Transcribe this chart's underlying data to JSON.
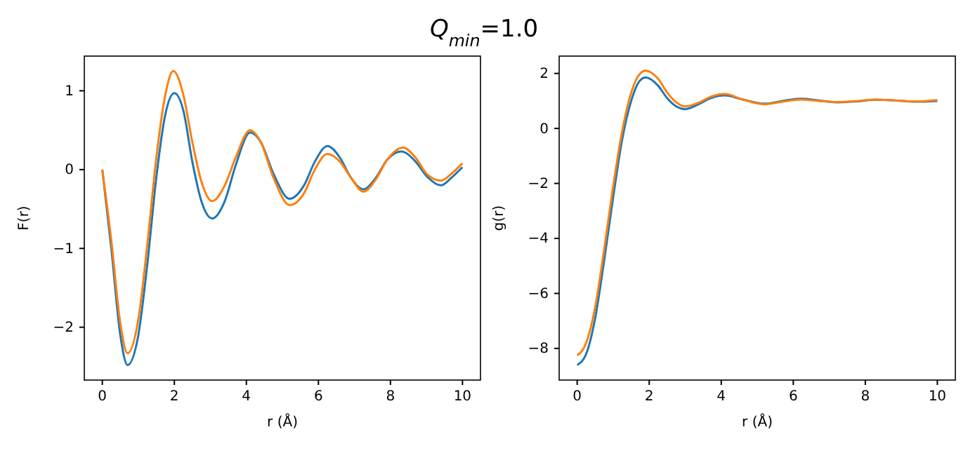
{
  "chart_data": [
    {
      "type": "line",
      "title": "Q$_{min}$=1.0",
      "xlabel": "r (Å)",
      "ylabel": "F(r)",
      "xlim": [
        -0.5,
        10.5
      ],
      "xticks": [
        0,
        2,
        4,
        6,
        8,
        10
      ],
      "ylim": [
        -2.67,
        1.44
      ],
      "yticks": [
        -2,
        -1,
        0,
        1
      ],
      "grid": false,
      "series": [
        {
          "color": "#1f77b4",
          "x": [
            0,
            0.25,
            0.5,
            0.7,
            1.0,
            1.25,
            1.5,
            1.75,
            2.0,
            2.25,
            2.5,
            2.75,
            3.05,
            3.4,
            3.7,
            4.1,
            4.4,
            4.75,
            5.2,
            5.6,
            5.9,
            6.25,
            6.6,
            6.9,
            7.25,
            7.6,
            7.9,
            8.3,
            8.7,
            9.0,
            9.4,
            9.7,
            10
          ],
          "values": [
            0,
            -1.0,
            -2.1,
            -2.48,
            -2.1,
            -1.2,
            -0.1,
            0.7,
            0.97,
            0.75,
            0.1,
            -0.4,
            -0.62,
            -0.4,
            0.05,
            0.47,
            0.35,
            -0.05,
            -0.37,
            -0.2,
            0.1,
            0.3,
            0.15,
            -0.1,
            -0.25,
            -0.1,
            0.12,
            0.23,
            0.1,
            -0.08,
            -0.2,
            -0.1,
            0.03
          ]
        },
        {
          "color": "#ff7f0e",
          "x": [
            0,
            0.25,
            0.5,
            0.7,
            1.0,
            1.25,
            1.5,
            1.75,
            1.97,
            2.25,
            2.5,
            2.75,
            3.05,
            3.4,
            3.7,
            4.1,
            4.4,
            4.75,
            5.2,
            5.6,
            5.9,
            6.25,
            6.6,
            6.9,
            7.25,
            7.6,
            7.9,
            8.35,
            8.7,
            9.0,
            9.4,
            9.7,
            10
          ],
          "values": [
            0,
            -0.9,
            -1.95,
            -2.33,
            -1.9,
            -0.95,
            0.15,
            0.95,
            1.25,
            0.95,
            0.35,
            -0.15,
            -0.4,
            -0.2,
            0.15,
            0.5,
            0.35,
            -0.1,
            -0.45,
            -0.3,
            0.0,
            0.2,
            0.1,
            -0.1,
            -0.28,
            -0.12,
            0.12,
            0.28,
            0.15,
            -0.05,
            -0.14,
            -0.05,
            0.08
          ]
        }
      ]
    },
    {
      "type": "line",
      "xlabel": "r (Å)",
      "ylabel": "g(r)",
      "xlim": [
        -0.5,
        10.5
      ],
      "xticks": [
        0,
        2,
        4,
        6,
        8,
        10
      ],
      "ylim": [
        -9.15,
        2.63
      ],
      "yticks": [
        -8,
        -6,
        -4,
        -2,
        0,
        2
      ],
      "grid": false,
      "series": [
        {
          "color": "#1f77b4",
          "x": [
            0,
            0.25,
            0.5,
            0.75,
            1.0,
            1.25,
            1.5,
            1.75,
            1.9,
            2.25,
            2.5,
            2.75,
            3.0,
            3.4,
            3.7,
            4.1,
            4.6,
            5.2,
            5.7,
            6.2,
            6.7,
            7.2,
            7.7,
            8.3,
            8.8,
            9.4,
            10
          ],
          "values": [
            -8.6,
            -8.2,
            -6.9,
            -4.8,
            -2.5,
            -0.4,
            1.0,
            1.75,
            1.85,
            1.55,
            1.1,
            0.8,
            0.7,
            0.9,
            1.1,
            1.2,
            1.05,
            0.9,
            1.0,
            1.08,
            1.02,
            0.95,
            0.98,
            1.04,
            1.02,
            0.97,
            1.0
          ]
        },
        {
          "color": "#ff7f0e",
          "x": [
            0,
            0.25,
            0.5,
            0.75,
            1.0,
            1.25,
            1.5,
            1.75,
            1.9,
            2.25,
            2.5,
            2.75,
            3.0,
            3.4,
            3.7,
            4.1,
            4.6,
            5.2,
            5.7,
            6.2,
            6.7,
            7.2,
            7.7,
            8.3,
            8.8,
            9.4,
            10
          ],
          "values": [
            -8.25,
            -7.8,
            -6.5,
            -4.4,
            -2.1,
            -0.1,
            1.3,
            2.0,
            2.1,
            1.8,
            1.3,
            0.95,
            0.8,
            0.95,
            1.15,
            1.25,
            1.05,
            0.88,
            0.97,
            1.05,
            1.0,
            0.96,
            0.99,
            1.05,
            1.02,
            0.98,
            1.03
          ]
        }
      ]
    }
  ]
}
